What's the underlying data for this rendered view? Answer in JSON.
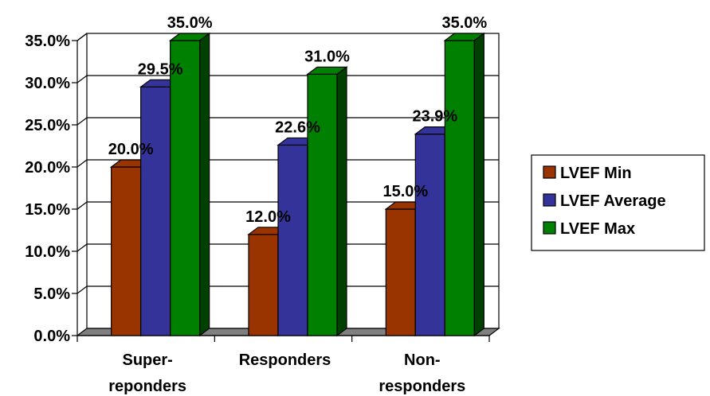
{
  "chart_data": {
    "type": "bar",
    "categories": [
      "Super-\nreponders",
      "Responders",
      "Non-\nresponders"
    ],
    "series": [
      {
        "name": "LVEF Min",
        "values": [
          20.0,
          12.0,
          15.0
        ],
        "labels": [
          "20.0%",
          "12.0%",
          "15.0%"
        ],
        "color": "#993300",
        "dark_color": "#4d1a00"
      },
      {
        "name": "LVEF Average",
        "values": [
          29.5,
          22.6,
          23.9
        ],
        "labels": [
          "29.5%",
          "22.6%",
          "23.9%"
        ],
        "color": "#333399",
        "dark_color": "#1a1a4d"
      },
      {
        "name": "LVEF Max",
        "values": [
          35.0,
          31.0,
          35.0
        ],
        "labels": [
          "35.0%",
          "31.0%",
          "35.0%"
        ],
        "color": "#008000",
        "dark_color": "#004000"
      }
    ],
    "ylim": [
      0,
      35
    ],
    "y_ticks": [
      0,
      5,
      10,
      15,
      20,
      25,
      30,
      35
    ],
    "y_tick_labels": [
      "0.0%",
      "5.0%",
      "10.0%",
      "15.0%",
      "20.0%",
      "25.0%",
      "30.0%",
      "35.0%"
    ],
    "grid": true,
    "legend_position": "right",
    "title": "",
    "xlabel": "",
    "ylabel": ""
  }
}
